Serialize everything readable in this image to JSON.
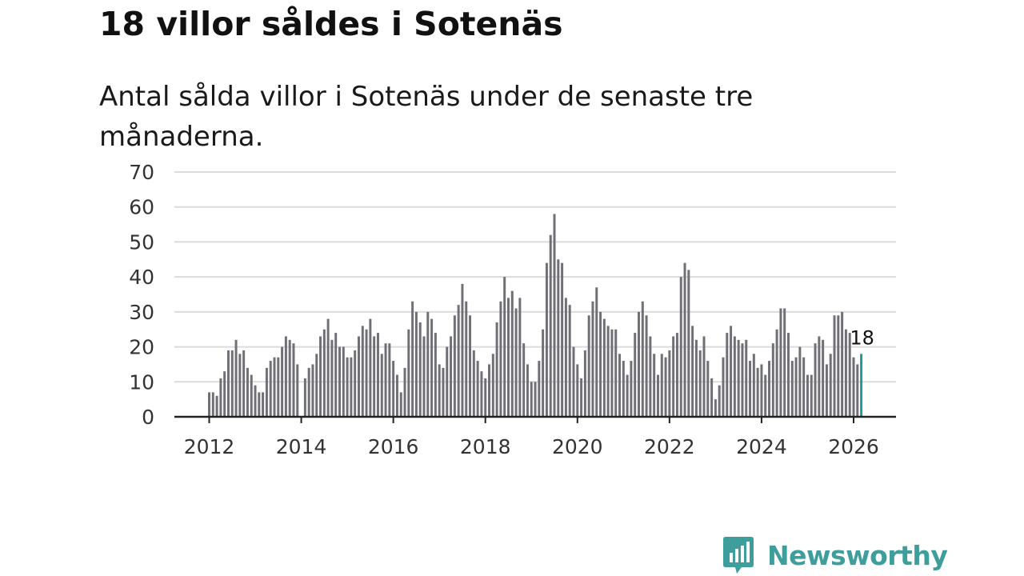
{
  "header": {
    "title": "18 villor såldes i Sotenäs",
    "subtitle": "Antal sålda villor i Sotenäs under de senaste tre månaderna."
  },
  "brand": {
    "name": "Newsworthy",
    "color": "#3d9e9c"
  },
  "colors": {
    "bar": "#6f6f75",
    "highlight": "#1f9a98",
    "grid": "#dcdcdc",
    "axis": "#222222"
  },
  "chart_data": {
    "type": "bar",
    "title": "18 villor såldes i Sotenäs",
    "xlabel": "",
    "ylabel": "",
    "ylim": [
      0,
      70
    ],
    "yticks": [
      0,
      10,
      20,
      30,
      40,
      50,
      60,
      70
    ],
    "xticks": [
      "2012",
      "2014",
      "2016",
      "2018",
      "2020",
      "2022",
      "2024",
      "2026"
    ],
    "x_start": "2012-01",
    "highlight_label": "18",
    "values": [
      7,
      7,
      6,
      11,
      13,
      19,
      19,
      22,
      18,
      19,
      14,
      12,
      9,
      7,
      7,
      14,
      16,
      17,
      17,
      20,
      23,
      22,
      21,
      15,
      0,
      11,
      14,
      15,
      18,
      23,
      25,
      28,
      22,
      24,
      20,
      20,
      17,
      17,
      19,
      23,
      26,
      25,
      28,
      23,
      24,
      18,
      21,
      21,
      16,
      12,
      7,
      14,
      25,
      33,
      30,
      27,
      23,
      30,
      28,
      24,
      15,
      14,
      20,
      23,
      29,
      32,
      38,
      33,
      29,
      19,
      16,
      13,
      11,
      15,
      18,
      27,
      33,
      40,
      34,
      36,
      31,
      34,
      21,
      15,
      10,
      10,
      16,
      25,
      44,
      52,
      58,
      45,
      44,
      34,
      32,
      20,
      15,
      11,
      19,
      29,
      33,
      37,
      30,
      28,
      26,
      25,
      25,
      18,
      16,
      12,
      16,
      24,
      30,
      33,
      29,
      23,
      18,
      12,
      18,
      17,
      19,
      23,
      24,
      40,
      44,
      42,
      26,
      22,
      19,
      23,
      16,
      11,
      5,
      9,
      17,
      24,
      26,
      23,
      22,
      21,
      22,
      16,
      18,
      14,
      15,
      12,
      16,
      21,
      25,
      31,
      31,
      24,
      16,
      17,
      20,
      17,
      12,
      12,
      21,
      23,
      22,
      15,
      18,
      29,
      29,
      30,
      25,
      24,
      17,
      15,
      18
    ]
  }
}
